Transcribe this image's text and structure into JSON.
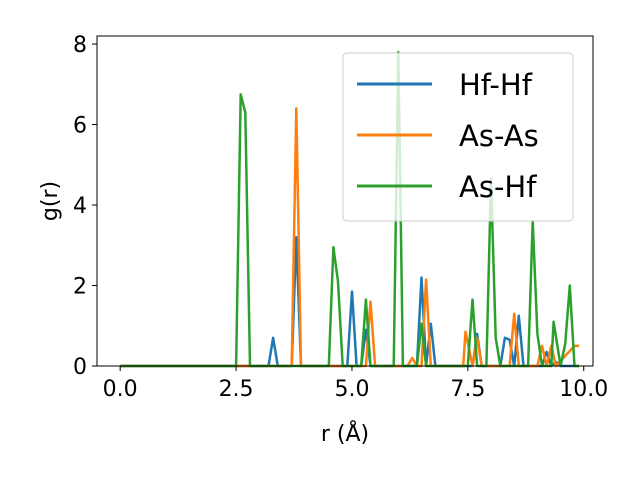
{
  "chart_data": {
    "type": "line",
    "xlabel": "r (Å)",
    "ylabel": "g(r)",
    "xlim": [
      -0.5,
      10.2
    ],
    "ylim": [
      0,
      8.2
    ],
    "xticks": [
      0.0,
      2.5,
      5.0,
      7.5,
      10.0
    ],
    "xtick_labels": [
      "0.0",
      "2.5",
      "5.0",
      "7.5",
      "10.0"
    ],
    "yticks": [
      0,
      2,
      4,
      6,
      8
    ],
    "ytick_labels": [
      "0",
      "2",
      "4",
      "6",
      "8"
    ],
    "grid": false,
    "legend_position": "top-right",
    "series": [
      {
        "name": "Hf-Hf",
        "color": "#1f77b4",
        "points": [
          [
            0.0,
            0
          ],
          [
            3.2,
            0
          ],
          [
            3.3,
            0.7
          ],
          [
            3.4,
            0
          ],
          [
            3.7,
            0
          ],
          [
            3.8,
            3.2
          ],
          [
            3.9,
            0
          ],
          [
            4.9,
            0
          ],
          [
            5.0,
            1.85
          ],
          [
            5.1,
            0
          ],
          [
            5.2,
            0
          ],
          [
            5.3,
            0.9
          ],
          [
            5.4,
            0
          ],
          [
            6.4,
            0
          ],
          [
            6.5,
            2.2
          ],
          [
            6.6,
            0
          ],
          [
            6.7,
            1.05
          ],
          [
            6.8,
            0
          ],
          [
            7.6,
            0
          ],
          [
            7.7,
            0.8
          ],
          [
            7.8,
            0
          ],
          [
            8.2,
            0
          ],
          [
            8.3,
            0.7
          ],
          [
            8.4,
            0.65
          ],
          [
            8.5,
            0
          ],
          [
            8.6,
            1.25
          ],
          [
            8.7,
            0
          ],
          [
            9.1,
            0
          ],
          [
            9.2,
            0.35
          ],
          [
            9.3,
            0
          ],
          [
            9.4,
            0.1
          ],
          [
            9.5,
            0
          ],
          [
            9.9,
            0
          ]
        ]
      },
      {
        "name": "As-As",
        "color": "#ff7f0e",
        "points": [
          [
            0.0,
            0
          ],
          [
            3.7,
            0
          ],
          [
            3.8,
            6.4
          ],
          [
            3.9,
            0
          ],
          [
            5.3,
            0
          ],
          [
            5.4,
            1.6
          ],
          [
            5.5,
            0
          ],
          [
            6.2,
            0
          ],
          [
            6.3,
            0.2
          ],
          [
            6.4,
            0
          ],
          [
            6.5,
            0
          ],
          [
            6.6,
            2.15
          ],
          [
            6.7,
            0
          ],
          [
            7.4,
            0
          ],
          [
            7.45,
            0.85
          ],
          [
            7.6,
            0
          ],
          [
            7.7,
            0.7
          ],
          [
            7.8,
            0
          ],
          [
            8.4,
            0
          ],
          [
            8.5,
            1.3
          ],
          [
            8.6,
            0
          ],
          [
            9.0,
            0
          ],
          [
            9.1,
            0.5
          ],
          [
            9.2,
            0
          ],
          [
            9.3,
            0.5
          ],
          [
            9.4,
            0
          ],
          [
            9.8,
            0.5
          ],
          [
            9.9,
            0.5
          ]
        ]
      },
      {
        "name": "As-Hf",
        "color": "#2ca02c",
        "points": [
          [
            0.0,
            0
          ],
          [
            2.5,
            0
          ],
          [
            2.6,
            6.75
          ],
          [
            2.7,
            6.3
          ],
          [
            2.8,
            0
          ],
          [
            4.5,
            0
          ],
          [
            4.6,
            2.95
          ],
          [
            4.7,
            2.1
          ],
          [
            4.8,
            0
          ],
          [
            5.2,
            0
          ],
          [
            5.3,
            1.65
          ],
          [
            5.4,
            0
          ],
          [
            5.9,
            0
          ],
          [
            6.0,
            7.8
          ],
          [
            6.1,
            0
          ],
          [
            6.4,
            0
          ],
          [
            6.5,
            1.05
          ],
          [
            6.6,
            0
          ],
          [
            7.5,
            0
          ],
          [
            7.6,
            1.65
          ],
          [
            7.7,
            0
          ],
          [
            7.9,
            0
          ],
          [
            8.0,
            4.65
          ],
          [
            8.1,
            0.7
          ],
          [
            8.2,
            0
          ],
          [
            8.8,
            0
          ],
          [
            8.9,
            3.6
          ],
          [
            9.0,
            0.8
          ],
          [
            9.1,
            0
          ],
          [
            9.3,
            0
          ],
          [
            9.35,
            1.1
          ],
          [
            9.5,
            0
          ],
          [
            9.6,
            0.55
          ],
          [
            9.7,
            2.0
          ],
          [
            9.8,
            0
          ],
          [
            9.9,
            0
          ]
        ]
      }
    ]
  }
}
